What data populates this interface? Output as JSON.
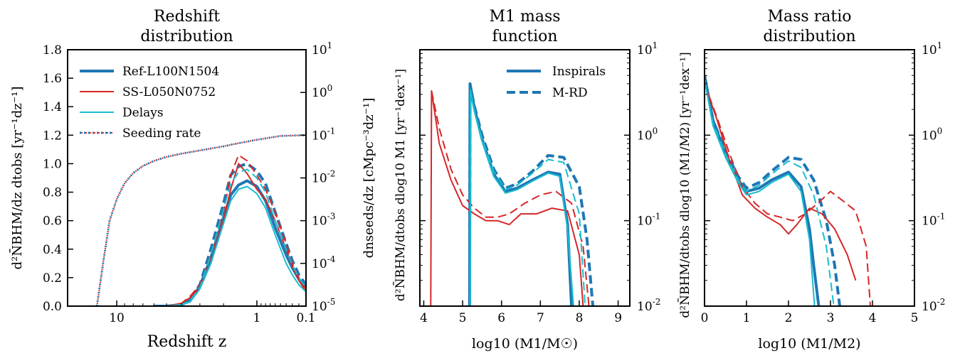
{
  "colors": {
    "ref": "#1f77b4",
    "ss": "#d62728",
    "delays": "#17becf",
    "axis": "#000000"
  },
  "chart_data": [
    {
      "type": "line",
      "title_lines": [
        "Redshift",
        "distribution"
      ],
      "xlabel": "Redshift z",
      "ylabel_left": "d²N̄BHM/dz dtobs [yr⁻¹dz⁻¹]",
      "ylabel_right": "dnseeds/dz [cMpc⁻³dz⁻¹]",
      "x_scale": "log(1+z), reversed",
      "x_ticks": [
        "10",
        "1",
        "0.1"
      ],
      "ylim_left": [
        0,
        1.8
      ],
      "yticks_left": [
        "0.0",
        "0.2",
        "0.4",
        "0.6",
        "0.8",
        "1.0",
        "1.2",
        "1.4",
        "1.6",
        "1.8"
      ],
      "ylim_right_log": [
        1e-05,
        10
      ],
      "yticks_right": [
        "10^-5",
        "10^-4",
        "10^-3",
        "10^-2",
        "10^-1",
        "10^0",
        "10^1"
      ],
      "legend": [
        "Ref-L100N1504",
        "SS-L050N0752",
        "Delays",
        "Seeding rate"
      ],
      "legend_position": "upper-left",
      "series": [
        {
          "name": "Ref-L100N1504",
          "style": "solid",
          "x": [
            6,
            5,
            4,
            3.5,
            3,
            2.5,
            2,
            1.75,
            1.5,
            1.25,
            1,
            0.8,
            0.6,
            0.4,
            0.3,
            0.2,
            0.1
          ],
          "y": [
            0,
            0,
            0.01,
            0.04,
            0.14,
            0.34,
            0.62,
            0.78,
            0.85,
            0.88,
            0.84,
            0.74,
            0.55,
            0.36,
            0.27,
            0.19,
            0.13
          ]
        },
        {
          "name": "Ref-L100N1504 M-RD",
          "style": "dashed",
          "x": [
            6,
            5,
            4,
            3.5,
            3,
            2.5,
            2,
            1.75,
            1.5,
            1.25,
            1,
            0.8,
            0.6,
            0.4,
            0.3,
            0.2,
            0.1
          ],
          "y": [
            0,
            0,
            0.01,
            0.05,
            0.15,
            0.4,
            0.72,
            0.92,
            0.98,
            1.0,
            0.95,
            0.86,
            0.66,
            0.44,
            0.32,
            0.22,
            0.15
          ]
        },
        {
          "name": "SS-L050N0752",
          "style": "solid",
          "x": [
            6,
            5,
            4,
            3.5,
            3,
            2.5,
            2,
            1.75,
            1.5,
            1.25,
            1,
            0.8,
            0.6,
            0.4,
            0.3,
            0.2,
            0.1
          ],
          "y": [
            0,
            0,
            0.02,
            0.06,
            0.13,
            0.3,
            0.6,
            0.82,
            1.0,
            0.93,
            0.82,
            0.75,
            0.6,
            0.4,
            0.28,
            0.18,
            0.1
          ]
        },
        {
          "name": "SS-L050N0752 M-RD",
          "style": "dashed",
          "x": [
            6,
            5,
            4,
            3.5,
            3,
            2.5,
            2,
            1.75,
            1.5,
            1.25,
            1,
            0.8,
            0.6,
            0.4,
            0.3,
            0.2,
            0.1
          ],
          "y": [
            0,
            0,
            0.02,
            0.07,
            0.15,
            0.34,
            0.66,
            0.92,
            1.06,
            1.02,
            0.92,
            0.82,
            0.66,
            0.44,
            0.3,
            0.2,
            0.12
          ]
        },
        {
          "name": "Delays",
          "style": "solid",
          "x": [
            6,
            5,
            4,
            3.5,
            3,
            2.5,
            2,
            1.75,
            1.5,
            1.25,
            1,
            0.8,
            0.6,
            0.4,
            0.3,
            0.2,
            0.1
          ],
          "y": [
            0,
            0,
            0.01,
            0.03,
            0.12,
            0.3,
            0.58,
            0.74,
            0.82,
            0.84,
            0.79,
            0.69,
            0.5,
            0.3,
            0.22,
            0.15,
            0.1
          ]
        },
        {
          "name": "Delays M-RD",
          "style": "dashed",
          "x": [
            6,
            5,
            4,
            3.5,
            3,
            2.5,
            2,
            1.75,
            1.5,
            1.25,
            1,
            0.8,
            0.6,
            0.4,
            0.3,
            0.2,
            0.1
          ],
          "y": [
            0,
            0,
            0.01,
            0.04,
            0.13,
            0.36,
            0.68,
            0.86,
            0.94,
            0.96,
            0.9,
            0.8,
            0.6,
            0.4,
            0.29,
            0.2,
            0.13
          ]
        },
        {
          "name": "Seeding rate",
          "style": "dotted",
          "axis": "right",
          "x": [
            13,
            12,
            11,
            10,
            9,
            8,
            7,
            6,
            5,
            4,
            3,
            2,
            1.5,
            1,
            0.5,
            0.1
          ],
          "y": [
            1e-05,
            0.0001,
            0.001,
            0.0032,
            0.0075,
            0.013,
            0.019,
            0.025,
            0.031,
            0.037,
            0.044,
            0.055,
            0.065,
            0.078,
            0.096,
            0.1
          ]
        }
      ]
    },
    {
      "type": "line",
      "title_lines": [
        "M1 mass",
        "function"
      ],
      "xlabel": "log10 (M1/M☉)",
      "ylabel": "d²N̄BHM/dtobs dlog10 M1 [yr⁻¹dex⁻¹]",
      "xlim": [
        3.9,
        9.3
      ],
      "x_ticks": [
        "4",
        "5",
        "6",
        "7",
        "8",
        "9"
      ],
      "ylim_log": [
        0.01,
        10
      ],
      "yticks": [
        "10^-2",
        "10^-1",
        "10^0",
        "10^1"
      ],
      "legend": [
        "Inspirals",
        "M-RD"
      ],
      "legend_position": "upper-right",
      "series": [
        {
          "name": "Ref-L100N1504",
          "style": "solid",
          "x": [
            5.18,
            5.19,
            5.3,
            5.5,
            5.8,
            6.1,
            6.4,
            6.8,
            7.2,
            7.5,
            7.7,
            7.8
          ],
          "y": [
            0.01,
            4.0,
            2.1,
            0.9,
            0.35,
            0.22,
            0.24,
            0.3,
            0.37,
            0.35,
            0.09,
            0.01
          ]
        },
        {
          "name": "Ref-L100N1504 M-RD",
          "style": "dashed",
          "x": [
            5.18,
            5.19,
            5.3,
            5.5,
            5.8,
            6.1,
            6.4,
            6.8,
            7.2,
            7.6,
            8.0,
            8.2,
            8.35
          ],
          "y": [
            0.01,
            3.9,
            2.2,
            1.0,
            0.4,
            0.24,
            0.27,
            0.38,
            0.58,
            0.55,
            0.25,
            0.06,
            0.01
          ]
        },
        {
          "name": "SS-L050N0752",
          "style": "solid",
          "x": [
            4.18,
            4.2,
            4.4,
            4.7,
            5.0,
            5.3,
            5.6,
            5.9,
            6.2,
            6.5,
            6.9,
            7.3,
            7.7,
            8.0,
            8.1
          ],
          "y": [
            0.01,
            3.3,
            0.8,
            0.3,
            0.15,
            0.12,
            0.1,
            0.1,
            0.09,
            0.12,
            0.12,
            0.14,
            0.13,
            0.04,
            0.01
          ]
        },
        {
          "name": "SS-L050N0752 M-RD",
          "style": "dashed",
          "x": [
            4.2,
            4.4,
            4.7,
            5.0,
            5.3,
            5.6,
            5.9,
            6.2,
            6.6,
            7.0,
            7.4,
            7.8,
            8.1,
            8.25
          ],
          "y": [
            3.3,
            1.2,
            0.4,
            0.2,
            0.14,
            0.11,
            0.11,
            0.12,
            0.16,
            0.2,
            0.22,
            0.16,
            0.05,
            0.01
          ]
        },
        {
          "name": "Delays",
          "style": "solid",
          "x": [
            5.19,
            5.2,
            5.3,
            5.5,
            5.8,
            6.1,
            6.4,
            6.8,
            7.2,
            7.5,
            7.7,
            7.85
          ],
          "y": [
            0.01,
            3.4,
            1.9,
            0.85,
            0.33,
            0.21,
            0.23,
            0.29,
            0.36,
            0.33,
            0.08,
            0.01
          ]
        },
        {
          "name": "Delays M-RD",
          "style": "dashed",
          "x": [
            5.19,
            5.2,
            5.3,
            5.5,
            5.8,
            6.1,
            6.4,
            6.8,
            7.2,
            7.6,
            8.0,
            8.15
          ],
          "y": [
            0.01,
            3.3,
            2.0,
            0.9,
            0.38,
            0.23,
            0.26,
            0.36,
            0.52,
            0.48,
            0.12,
            0.01
          ]
        }
      ]
    },
    {
      "type": "line",
      "title_lines": [
        "Mass ratio",
        "distribution"
      ],
      "xlabel": "log10 (M1/M2)",
      "ylabel": "d²N̄BHM/dtobs dlog10 (M1/M2) [yr⁻¹dex⁻¹]",
      "xlim": [
        0,
        5
      ],
      "x_ticks": [
        "0",
        "1",
        "2",
        "3",
        "4",
        "5"
      ],
      "ylim_log": [
        0.01,
        10
      ],
      "yticks": [
        "10^-2",
        "10^-1",
        "10^0",
        "10^1"
      ],
      "series": [
        {
          "name": "Ref-L100N1504",
          "style": "solid",
          "x": [
            0,
            0.2,
            0.5,
            0.8,
            1.0,
            1.3,
            1.6,
            2.0,
            2.3,
            2.5,
            2.6,
            2.72
          ],
          "y": [
            5.0,
            1.5,
            0.6,
            0.3,
            0.22,
            0.24,
            0.3,
            0.37,
            0.25,
            0.08,
            0.03,
            0.01
          ]
        },
        {
          "name": "Ref-L100N1504 M-RD",
          "style": "dashed",
          "x": [
            0,
            0.2,
            0.5,
            0.8,
            1.0,
            1.3,
            1.6,
            2.0,
            2.3,
            2.6,
            2.9,
            3.1,
            3.22
          ],
          "y": [
            5.0,
            1.5,
            0.65,
            0.33,
            0.24,
            0.28,
            0.38,
            0.55,
            0.52,
            0.3,
            0.1,
            0.03,
            0.01
          ]
        },
        {
          "name": "SS-L050N0752",
          "style": "solid",
          "x": [
            0,
            0.3,
            0.6,
            0.9,
            1.2,
            1.5,
            1.8,
            2.0,
            2.2,
            2.5,
            2.8,
            3.1,
            3.4,
            3.6
          ],
          "y": [
            4.0,
            1.5,
            0.5,
            0.2,
            0.14,
            0.11,
            0.09,
            0.07,
            0.09,
            0.14,
            0.12,
            0.08,
            0.04,
            0.02
          ]
        },
        {
          "name": "SS-L050N0752 M-RD",
          "style": "dashed",
          "x": [
            0,
            0.3,
            0.6,
            0.9,
            1.2,
            1.5,
            1.8,
            2.1,
            2.4,
            2.7,
            3.0,
            3.3,
            3.6,
            3.85,
            3.95
          ],
          "y": [
            4.0,
            1.6,
            0.6,
            0.25,
            0.16,
            0.12,
            0.11,
            0.1,
            0.12,
            0.16,
            0.22,
            0.17,
            0.13,
            0.05,
            0.01
          ]
        },
        {
          "name": "Delays",
          "style": "solid",
          "x": [
            0,
            0.2,
            0.5,
            0.8,
            1.0,
            1.3,
            1.6,
            2.0,
            2.3,
            2.5,
            2.62
          ],
          "y": [
            4.5,
            1.3,
            0.55,
            0.28,
            0.2,
            0.22,
            0.28,
            0.35,
            0.22,
            0.06,
            0.01
          ]
        },
        {
          "name": "Delays M-RD",
          "style": "dashed",
          "x": [
            0,
            0.2,
            0.5,
            0.8,
            1.0,
            1.3,
            1.6,
            2.0,
            2.3,
            2.6,
            2.9,
            3.08
          ],
          "y": [
            4.5,
            1.4,
            0.6,
            0.3,
            0.22,
            0.26,
            0.35,
            0.5,
            0.42,
            0.2,
            0.05,
            0.01
          ]
        }
      ]
    }
  ]
}
